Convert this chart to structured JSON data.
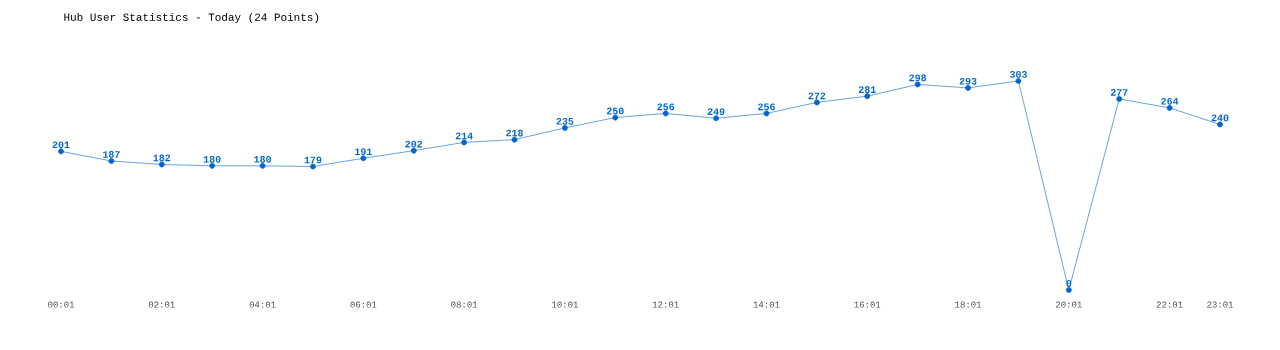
{
  "chart_data": {
    "type": "line",
    "title": "Hub User Statistics - Today (24 Points)",
    "categories": [
      "00:01",
      null,
      "02:01",
      null,
      "04:01",
      null,
      "06:01",
      null,
      "08:01",
      null,
      "10:01",
      null,
      "12:01",
      null,
      "14:01",
      null,
      "16:01",
      null,
      "18:01",
      null,
      "20:01",
      null,
      "22:01",
      "23:01"
    ],
    "values": [
      201,
      187,
      182,
      180,
      180,
      179,
      191,
      202,
      214,
      218,
      235,
      250,
      256,
      249,
      256,
      272,
      281,
      298,
      293,
      303,
      0,
      277,
      264,
      240
    ],
    "color": "#0066cc",
    "marker": "circle",
    "data_labels": true
  }
}
